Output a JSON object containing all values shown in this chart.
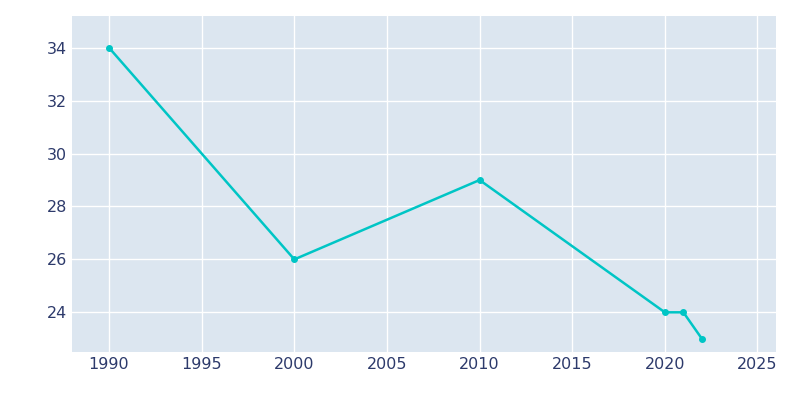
{
  "years": [
    1990,
    2000,
    2010,
    2020,
    2021,
    2022
  ],
  "population": [
    34,
    26,
    29,
    24,
    24,
    23
  ],
  "line_color": "#00c5c5",
  "marker": "o",
  "marker_size": 4,
  "line_width": 1.8,
  "background_color": "#dce6f0",
  "fig_background_color": "#ffffff",
  "grid_color": "#ffffff",
  "xlim": [
    1988,
    2026
  ],
  "ylim": [
    22.5,
    35.2
  ],
  "xticks": [
    1990,
    1995,
    2000,
    2005,
    2010,
    2015,
    2020,
    2025
  ],
  "yticks": [
    24,
    26,
    28,
    30,
    32,
    34
  ],
  "tick_color": "#2d3a6b",
  "tick_fontsize": 11.5
}
